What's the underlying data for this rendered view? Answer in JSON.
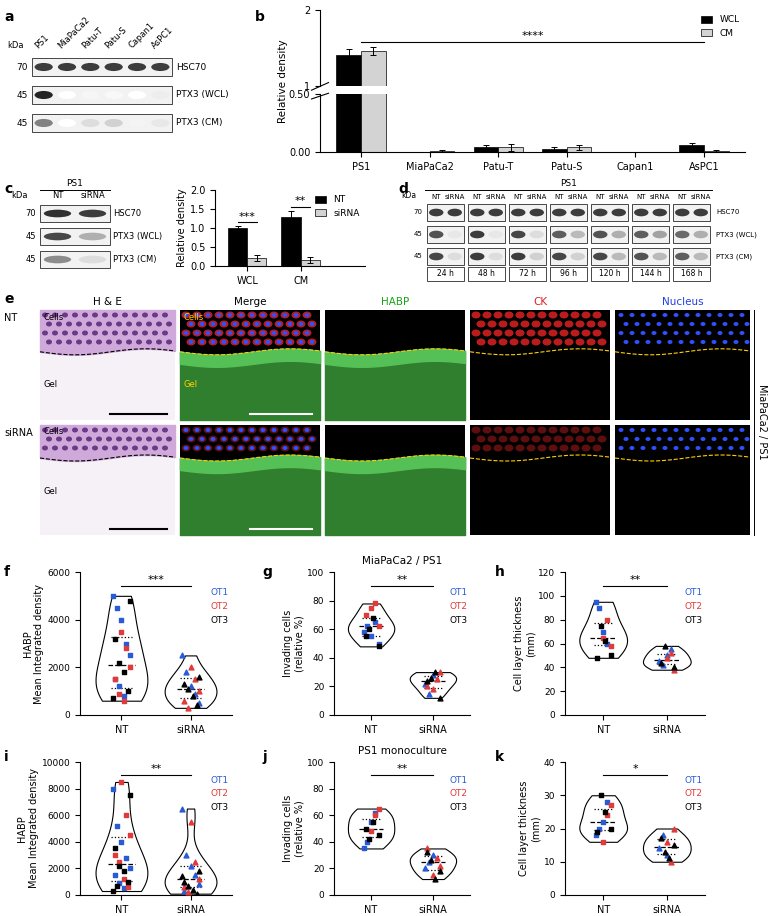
{
  "panel_labels": [
    "a",
    "b",
    "c",
    "d",
    "e",
    "f",
    "g",
    "h",
    "i",
    "j",
    "k"
  ],
  "blots": [
    {
      "kda_header": "kDa",
      "lanes": [
        "PS1",
        "MiaPaCa2",
        "Patu-T",
        "Patu-S",
        "Capan1",
        "AsPC1"
      ],
      "rows": [
        {
          "kda": "70",
          "label": "HSC70",
          "intensities": [
            0.85,
            0.85,
            0.85,
            0.85,
            0.85,
            0.85
          ]
        },
        {
          "kda": "45",
          "label": "PTX3 (WCL)",
          "intensities": [
            0.95,
            0,
            0.04,
            0.03,
            0,
            0.08
          ]
        },
        {
          "kda": "45",
          "label": "PTX3 (CM)",
          "intensities": [
            0.55,
            0,
            0.15,
            0.2,
            0.05,
            0.1
          ]
        }
      ]
    },
    {
      "header": "PS1",
      "kda_header": "kDa",
      "lanes": [
        "NT",
        "siRNA"
      ],
      "rows": [
        {
          "kda": "70",
          "label": "HSC70",
          "intensities": [
            0.9,
            0.85
          ]
        },
        {
          "kda": "45",
          "label": "PTX3 (WCL)",
          "intensities": [
            0.8,
            0.35
          ]
        },
        {
          "kda": "45",
          "label": "PTX3 (CM)",
          "intensities": [
            0.5,
            0.15
          ]
        }
      ]
    },
    {
      "header": "PS1",
      "kda_header": "kDa",
      "groups": [
        "24 h",
        "48 h",
        "72 h",
        "96 h",
        "120 h",
        "144 h",
        "168 h"
      ],
      "lanes": [
        "NT",
        "siRNA"
      ],
      "rows": [
        {
          "kda": "70",
          "label": "HSC70",
          "intensities": [
            [
              0.85,
              0.85
            ],
            [
              0.85,
              0.85
            ],
            [
              0.85,
              0.85
            ],
            [
              0.85,
              0.85
            ],
            [
              0.85,
              0.85
            ],
            [
              0.85,
              0.85
            ],
            [
              0.85,
              0.85
            ]
          ]
        },
        {
          "kda": "45",
          "label": "PTX3 (WCL)",
          "intensities": [
            [
              0.75,
              0.1
            ],
            [
              0.85,
              0.1
            ],
            [
              0.8,
              0.15
            ],
            [
              0.7,
              0.3
            ],
            [
              0.75,
              0.35
            ],
            [
              0.7,
              0.4
            ],
            [
              0.65,
              0.35
            ]
          ]
        },
        {
          "kda": "45",
          "label": "PTX3 (CM)",
          "intensities": [
            [
              0.8,
              0.15
            ],
            [
              0.85,
              0.15
            ],
            [
              0.85,
              0.2
            ],
            [
              0.8,
              0.2
            ],
            [
              0.8,
              0.3
            ],
            [
              0.75,
              0.3
            ],
            [
              0.7,
              0.3
            ]
          ]
        }
      ]
    }
  ],
  "images": {
    "columns": [
      {
        "title": "H & E",
        "color": "#000000"
      },
      {
        "title": "Merge",
        "color": "#000000"
      },
      {
        "title": "HABP",
        "color": "#1aa31a"
      },
      {
        "title": "CK",
        "color": "#e02020"
      },
      {
        "title": "Nucleus",
        "color": "#2040e0"
      }
    ],
    "rows": [
      "NT",
      "siRNA"
    ],
    "side_label": "MiaPaCa2 / PS1",
    "region_labels": [
      "Cells",
      "Gel"
    ]
  },
  "chart_data": [
    {
      "type": "bar",
      "ylabel": "Relative density",
      "categories": [
        "PS1",
        "MiaPaCa2",
        "Patu-T",
        "Patu-S",
        "Capan1",
        "AsPC1"
      ],
      "series": [
        {
          "name": "WCL",
          "color": "#000000",
          "values": [
            1.41,
            0,
            0.04,
            0.03,
            0,
            0.06
          ],
          "errors": [
            0.08,
            0,
            0.02,
            0.01,
            0,
            0.02
          ]
        },
        {
          "name": "CM",
          "color": "#d3d3d3",
          "values": [
            1.46,
            0.01,
            0.04,
            0.04,
            0,
            0.01
          ],
          "errors": [
            0.05,
            0.01,
            0.03,
            0.02,
            0,
            0.01
          ]
        }
      ],
      "segments": [
        {
          "ylim": [
            0,
            0.5
          ],
          "yticks": [
            {
              "value": 0,
              "label": "0.00"
            },
            {
              "value": 0.5,
              "label": "0.50"
            }
          ]
        },
        {
          "ylim": [
            1,
            2
          ],
          "yticks": [
            1,
            2
          ]
        }
      ],
      "legend": "upper right",
      "annotations": [
        {
          "text": "****",
          "from": "PS1",
          "to": "AsPC1"
        }
      ]
    },
    {
      "type": "bar",
      "ylabel": "Relative density",
      "categories": [
        "WCL",
        "CM"
      ],
      "series": [
        {
          "name": "NT",
          "color": "#000000",
          "values": [
            1.0,
            1.3
          ],
          "errors": [
            0.05,
            0.15
          ]
        },
        {
          "name": "siRNA",
          "color": "#d3d3d3",
          "values": [
            0.2,
            0.15
          ],
          "errors": [
            0.08,
            0.08
          ]
        }
      ],
      "ylim": [
        0,
        2
      ],
      "yticks": [
        {
          "value": 0,
          "label": "0.0"
        },
        0.5,
        {
          "value": 1,
          "label": "1.0"
        },
        1.5,
        {
          "value": 2,
          "label": "2.0"
        }
      ],
      "legend": "upper right",
      "annotations": [
        {
          "text": "***",
          "category": "WCL"
        },
        {
          "text": "**",
          "category": "CM"
        }
      ]
    },
    {
      "type": "violin",
      "ylabel": "HABP\nMean Integrated density",
      "categories": [
        "NT",
        "siRNA"
      ],
      "ylim": [
        0,
        6000
      ],
      "yticks": [
        0,
        2000,
        4000,
        6000
      ],
      "significance": "***",
      "series": [
        {
          "name": "OT1",
          "color": "#2a5bd7",
          "values": [
            [
              5000,
              4500,
              4000,
              3000,
              2500,
              1500,
              1200,
              800
            ],
            [
              2500,
              1800,
              1200,
              900,
              500
            ]
          ]
        },
        {
          "name": "OT2",
          "color": "#e03a3a",
          "values": [
            [
              3500,
              2800,
              2000,
              1500,
              900,
              600
            ],
            [
              2000,
              1500,
              1000,
              600,
              300
            ]
          ]
        },
        {
          "name": "OT3",
          "color": "#000000",
          "values": [
            [
              4800,
              3200,
              2200,
              1800,
              1000,
              700
            ],
            [
              1600,
              1300,
              1100,
              800,
              400
            ]
          ]
        }
      ]
    },
    {
      "type": "violin",
      "title": "MiaPaCa2 / PS1",
      "ylabel": "Invading cells\n(relative %)",
      "categories": [
        "NT",
        "siRNA"
      ],
      "ylim": [
        0,
        100
      ],
      "yticks": [
        0,
        20,
        40,
        60,
        80,
        100
      ],
      "significance": "**",
      "series": [
        {
          "name": "OT1",
          "color": "#2a5bd7",
          "values": [
            [
              58,
              62,
              55,
              65,
              50
            ],
            [
              22,
              15,
              28
            ]
          ]
        },
        {
          "name": "OT2",
          "color": "#e03a3a",
          "values": [
            [
              75,
              78,
              62,
              70
            ],
            [
              18,
              25,
              30,
              20
            ]
          ]
        },
        {
          "name": "OT3",
          "color": "#000000",
          "values": [
            [
              48,
              55,
              60,
              68
            ],
            [
              12,
              24,
              26,
              30
            ]
          ]
        }
      ]
    },
    {
      "type": "violin",
      "ylabel": "Cell layer thickness\n(mm)",
      "categories": [
        "NT",
        "siRNA"
      ],
      "ylim": [
        0,
        120
      ],
      "yticks": [
        0,
        20,
        40,
        60,
        80,
        100,
        120
      ],
      "significance": "**",
      "series": [
        {
          "name": "OT1",
          "color": "#2a5bd7",
          "values": [
            [
              95,
              90,
              70,
              60
            ],
            [
              45,
              42,
              50,
              55
            ]
          ]
        },
        {
          "name": "OT2",
          "color": "#e03a3a",
          "values": [
            [
              65,
              80,
              58
            ],
            [
              48,
              52,
              38
            ]
          ]
        },
        {
          "name": "OT3",
          "color": "#000000",
          "values": [
            [
              50,
              48,
              75,
              62
            ],
            [
              40,
              44,
              58
            ]
          ]
        }
      ]
    },
    {
      "type": "violin",
      "ylabel": "HABP\nMean Integrated density",
      "categories": [
        "NT",
        "siRNA"
      ],
      "ylim": [
        0,
        10000
      ],
      "yticks": [
        0,
        2000,
        4000,
        6000,
        8000,
        10000
      ],
      "significance": "**",
      "series": [
        {
          "name": "OT1",
          "color": "#2a5bd7",
          "values": [
            [
              8000,
              5200,
              4000,
              2800,
              2000,
              1500,
              900,
              500
            ],
            [
              6500,
              3000,
              2200,
              1500,
              800,
              300
            ]
          ]
        },
        {
          "name": "OT2",
          "color": "#e03a3a",
          "values": [
            [
              8500,
              6000,
              4500,
              3000,
              2500,
              1200,
              600
            ],
            [
              5500,
              2500,
              1200,
              600,
              200
            ]
          ]
        },
        {
          "name": "OT3",
          "color": "#000000",
          "values": [
            [
              7500,
              3500,
              2200,
              1800,
              1000,
              300,
              700
            ],
            [
              1800,
              1000,
              700,
              400,
              100,
              1400
            ]
          ]
        }
      ]
    },
    {
      "type": "violin",
      "title": "PS1 monoculture",
      "ylabel": "Invading cells\n(relative %)",
      "categories": [
        "NT",
        "siRNA"
      ],
      "ylim": [
        0,
        100
      ],
      "yticks": [
        0,
        20,
        40,
        60,
        80,
        100
      ],
      "significance": "**",
      "series": [
        {
          "name": "OT1",
          "color": "#2a5bd7",
          "values": [
            [
              35,
              40,
              55,
              62
            ],
            [
              20,
              25,
              30
            ]
          ]
        },
        {
          "name": "OT2",
          "color": "#e03a3a",
          "values": [
            [
              48,
              60,
              65
            ],
            [
              15,
              28,
              22,
              35
            ]
          ]
        },
        {
          "name": "OT3",
          "color": "#000000",
          "values": [
            [
              45,
              50,
              42,
              55
            ],
            [
              18,
              32,
              26,
              12
            ]
          ]
        }
      ]
    },
    {
      "type": "violin",
      "ylabel": "Cell layer thickness\n(mm)",
      "categories": [
        "NT",
        "siRNA"
      ],
      "ylim": [
        0,
        40
      ],
      "yticks": [
        0,
        10,
        20,
        30,
        40
      ],
      "significance": "*",
      "series": [
        {
          "name": "OT1",
          "color": "#2a5bd7",
          "values": [
            [
              18,
              20,
              22,
              28
            ],
            [
              14,
              18,
              12
            ]
          ]
        },
        {
          "name": "OT2",
          "color": "#e03a3a",
          "values": [
            [
              16,
              24,
              27
            ],
            [
              16,
              10,
              20
            ]
          ]
        },
        {
          "name": "OT3",
          "color": "#000000",
          "values": [
            [
              20,
              19,
              30,
              25
            ],
            [
              15,
              17,
              13,
              11
            ]
          ]
        }
      ]
    }
  ]
}
